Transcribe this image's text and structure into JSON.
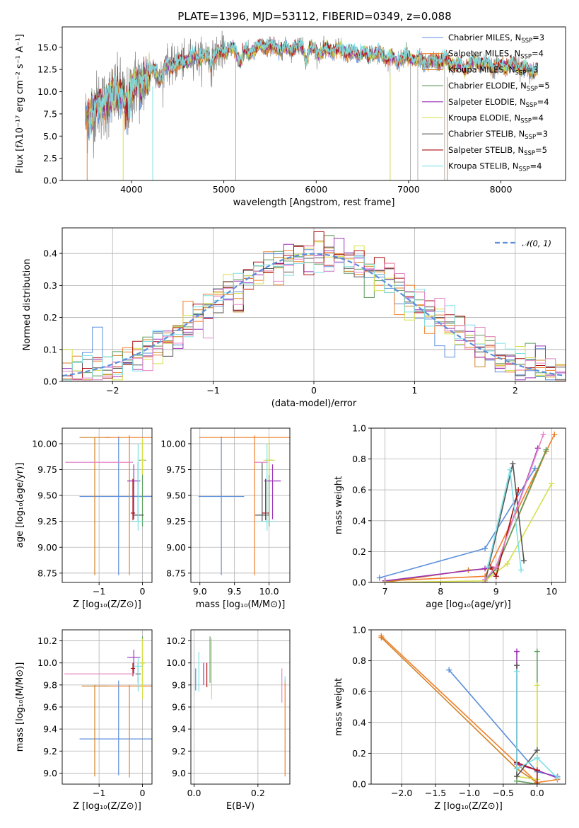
{
  "figure": {
    "title": "PLATE=1396, MJD=53112, FIBERID=0349, z=0.088",
    "colors": {
      "Chabrier MILES": "#5b8fdc",
      "Salpeter MILES": "#f07f2a",
      "Kroupa MILES": "#d28226",
      "Chabrier ELODIE": "#5f9e5f",
      "Salpeter ELODIE": "#9c32b8",
      "Kroupa ELODIE": "#d6e04a",
      "Chabrier STELIB": "#555555",
      "Salpeter STELIB": "#aa1010",
      "Kroupa STELIB": "#7ee0e6"
    }
  },
  "chart_data": [
    {
      "id": "spectrum",
      "type": "line",
      "xlabel": "wavelength [Angstrom, rest frame]",
      "ylabel": "Flux [fλ10⁻¹⁷ erg cm⁻² s⁻¹ A⁻¹]",
      "xlim": [
        3250,
        8700
      ],
      "ylim": [
        0,
        17.3
      ],
      "xticks": [
        4000,
        5000,
        6000,
        7000,
        8000
      ],
      "yticks": [
        0.0,
        2.5,
        5.0,
        7.5,
        10.0,
        12.5,
        15.0
      ],
      "grid": false,
      "legend_position": "right",
      "legend": [
        {
          "name": "Chabrier MILES",
          "label": "Chabrier MILES, N",
          "sub": "SSP",
          "tail": "=3"
        },
        {
          "name": "Salpeter MILES",
          "label": "Salpeter MILES, N",
          "sub": "SSP",
          "tail": "=4"
        },
        {
          "name": "Kroupa MILES",
          "label": "Kroupa MILES, N",
          "sub": "SSP",
          "tail": "=3"
        },
        {
          "name": "Chabrier ELODIE",
          "label": "Chabrier ELODIE, N",
          "sub": "SSP",
          "tail": "=5"
        },
        {
          "name": "Salpeter ELODIE",
          "label": "Salpeter ELODIE, N",
          "sub": "SSP",
          "tail": "=4"
        },
        {
          "name": "Kroupa ELODIE",
          "label": "Kroupa ELODIE, N",
          "sub": "SSP",
          "tail": "=4"
        },
        {
          "name": "Chabrier STELIB",
          "label": "Chabrier STELIB, N",
          "sub": "SSP",
          "tail": "=3"
        },
        {
          "name": "Salpeter STELIB",
          "label": "Salpeter STELIB, N",
          "sub": "SSP",
          "tail": "=5"
        },
        {
          "name": "Kroupa STELIB",
          "label": "Kroupa STELIB, N",
          "sub": "SSP",
          "tail": "=4"
        }
      ],
      "continuum": [
        [
          3500,
          6.5
        ],
        [
          3600,
          8.0
        ],
        [
          3700,
          8.8
        ],
        [
          3800,
          9.5
        ],
        [
          3900,
          9.8
        ],
        [
          4000,
          10.5
        ],
        [
          4100,
          11.3
        ],
        [
          4200,
          12.2
        ],
        [
          4300,
          12.6
        ],
        [
          4400,
          13.0
        ],
        [
          4600,
          13.6
        ],
        [
          4800,
          14.0
        ],
        [
          5000,
          14.5
        ],
        [
          5200,
          14.8
        ],
        [
          5500,
          15.0
        ],
        [
          5800,
          14.9
        ],
        [
          6000,
          14.8
        ],
        [
          6200,
          14.6
        ],
        [
          6500,
          14.4
        ],
        [
          6800,
          14.0
        ],
        [
          7000,
          13.7
        ],
        [
          7200,
          13.5
        ],
        [
          7500,
          13.2
        ],
        [
          7800,
          13.1
        ],
        [
          8000,
          13.0
        ],
        [
          8300,
          12.6
        ],
        [
          8400,
          12.6
        ]
      ]
    },
    {
      "id": "residuals",
      "type": "histogram",
      "xlabel": "(data-model)/error",
      "ylabel": "Normed distribution",
      "xlim": [
        -2.5,
        2.5
      ],
      "ylim": [
        0,
        0.48
      ],
      "xticks": [
        -2,
        -1,
        0,
        1,
        2
      ],
      "yticks": [
        0.0,
        0.1,
        0.2,
        0.3,
        0.4
      ],
      "grid": true,
      "legend_position": "top-right",
      "reference_label": "𝒩(0, 1)",
      "bin_width": 0.1
    },
    {
      "id": "age_vs_Z",
      "type": "scatter",
      "xlabel": "Z [log₁₀(Z/Z⊙)]",
      "ylabel": "age  [log₁₀(age/yr)]",
      "xlim": [
        -1.85,
        0.22
      ],
      "ylim": [
        8.66,
        10.15
      ],
      "xticks": [
        -1,
        0
      ],
      "yticks": [
        8.75,
        9.0,
        9.25,
        9.5,
        9.75,
        10.0
      ],
      "grid": true,
      "points": [
        {
          "model": "Chabrier MILES",
          "x": -0.55,
          "y": 9.49,
          "xerr": 0.9,
          "ylo": 8.73,
          "yhi": 10.07
        },
        {
          "model": "Salpeter MILES",
          "x": -0.3,
          "y": 10.06,
          "xerr": 0.55,
          "ylo": 8.73,
          "yhi": 10.08
        },
        {
          "model": "Kroupa MILES",
          "x": -1.1,
          "y": 10.06,
          "xerr": 0.35,
          "ylo": 8.73,
          "yhi": 10.06
        },
        {
          "model": "Chabrier ELODIE",
          "x": 0.0,
          "y": 9.84,
          "xerr": 0.08,
          "ylo": 9.2,
          "yhi": 10.02
        },
        {
          "model": "Salpeter ELODIE",
          "x": -0.2,
          "y": 9.64,
          "xerr": 0.15,
          "ylo": 9.27,
          "yhi": 9.8
        },
        {
          "model": "Kroupa ELODIE",
          "x": 0.0,
          "y": 9.84,
          "xerr": 0.05,
          "ylo": 9.7,
          "yhi": 10.05
        },
        {
          "model": "Chabrier STELIB",
          "x": -0.1,
          "y": 9.31,
          "xerr": 0.13,
          "ylo": 9.25,
          "yhi": 9.82
        },
        {
          "model": "Salpeter STELIB",
          "x": -0.22,
          "y": 9.33,
          "xerr": 0.05,
          "ylo": 9.26,
          "yhi": 9.66
        },
        {
          "model": "Kroupa STELIB",
          "x": -0.1,
          "y": 9.25,
          "xerr": 0.15,
          "ylo": 9.16,
          "yhi": 10.0
        },
        {
          "model": "Pink",
          "x": -1.0,
          "y": 9.82,
          "xerr": 0.78,
          "ylo": 9.82,
          "yhi": 9.82
        }
      ]
    },
    {
      "id": "age_vs_mass",
      "type": "scatter",
      "xlabel": "mass [log₁₀(M/M⊙)]",
      "ylabel": "",
      "xlim": [
        8.87,
        10.3
      ],
      "ylim": [
        8.66,
        10.15
      ],
      "xticks": [
        9.0,
        9.5,
        10.0
      ],
      "yticks": [
        8.75,
        9.0,
        9.25,
        9.5,
        9.75,
        10.0
      ],
      "grid": true,
      "points": [
        {
          "model": "Chabrier MILES",
          "x": 9.31,
          "y": 9.49,
          "xerr": 0.33,
          "ylo": 8.73,
          "yhi": 10.07
        },
        {
          "model": "Salpeter MILES",
          "x": 9.79,
          "y": 10.06,
          "xerr": 0.8,
          "ylo": 8.73,
          "yhi": 10.08
        },
        {
          "model": "Chabrier ELODIE",
          "x": 10.0,
          "y": 9.84,
          "xerr": 0.05,
          "ylo": 9.2,
          "yhi": 10.02
        },
        {
          "model": "Salpeter ELODIE",
          "x": 10.05,
          "y": 9.64,
          "xerr": 0.12,
          "ylo": 9.27,
          "yhi": 9.8
        },
        {
          "model": "Kroupa ELODIE",
          "x": 10.0,
          "y": 9.84,
          "xerr": 0.08,
          "ylo": 9.7,
          "yhi": 10.05
        },
        {
          "model": "Chabrier STELIB",
          "x": 9.9,
          "y": 9.31,
          "xerr": 0.1,
          "ylo": 9.25,
          "yhi": 9.82
        },
        {
          "model": "Salpeter STELIB",
          "x": 9.95,
          "y": 9.33,
          "xerr": 0.05,
          "ylo": 9.26,
          "yhi": 9.66
        },
        {
          "model": "Kroupa STELIB",
          "x": 9.97,
          "y": 9.25,
          "xerr": 0.12,
          "ylo": 9.16,
          "yhi": 10.0
        },
        {
          "model": "Pink",
          "x": 9.88,
          "y": 9.82,
          "xerr": 0.1,
          "ylo": 9.82,
          "yhi": 9.82
        }
      ]
    },
    {
      "id": "massweight_vs_age",
      "type": "line",
      "xlabel": "age  [log₁₀(age/yr)]",
      "ylabel": "mass weight",
      "xlim": [
        6.75,
        10.25
      ],
      "ylim": [
        0,
        1.0
      ],
      "xticks": [
        7,
        8,
        9,
        10
      ],
      "yticks": [
        0.0,
        0.2,
        0.4,
        0.6,
        0.8,
        1.0
      ],
      "grid": true,
      "series": [
        {
          "model": "Chabrier MILES",
          "x": [
            6.9,
            8.8,
            9.7
          ],
          "y": [
            0.03,
            0.22,
            0.74
          ]
        },
        {
          "model": "Salpeter MILES",
          "x": [
            7.0,
            8.8,
            10.05
          ],
          "y": [
            0.01,
            0.04,
            0.96
          ]
        },
        {
          "model": "Kroupa MILES",
          "x": [
            7.0,
            8.5,
            9.0,
            9.9
          ],
          "y": [
            0.0,
            0.08,
            0.09,
            0.85
          ]
        },
        {
          "model": "Chabrier ELODIE",
          "x": [
            8.8,
            9.0,
            9.9
          ],
          "y": [
            0.01,
            0.09,
            0.86
          ]
        },
        {
          "model": "Salpeter ELODIE",
          "x": [
            7.0,
            8.8,
            9.0,
            9.75
          ],
          "y": [
            0.01,
            0.09,
            0.1,
            0.87
          ]
        },
        {
          "model": "Kroupa ELODIE",
          "x": [
            7.0,
            8.8,
            9.2,
            10.0
          ],
          "y": [
            0.0,
            0.01,
            0.12,
            0.64
          ]
        },
        {
          "model": "Chabrier STELIB",
          "x": [
            8.8,
            9.3,
            9.5
          ],
          "y": [
            0.0,
            0.77,
            0.14
          ]
        },
        {
          "model": "Salpeter STELIB",
          "x": [
            8.9,
            9.0,
            9.4
          ],
          "y": [
            0.1,
            0.04,
            0.6
          ]
        },
        {
          "model": "Kroupa STELIB",
          "x": [
            8.85,
            9.25,
            9.45
          ],
          "y": [
            0.1,
            0.73,
            0.08
          ]
        },
        {
          "model": "Pink",
          "x": [
            8.8,
            9.0,
            9.85
          ],
          "y": [
            0.02,
            0.1,
            0.96
          ]
        }
      ]
    },
    {
      "id": "mass_vs_Z",
      "type": "scatter",
      "xlabel": "Z [log₁₀(Z/Z⊙)]",
      "ylabel": "mass [log₁₀(M/M⊙)]",
      "xlim": [
        -1.85,
        0.22
      ],
      "ylim": [
        8.9,
        10.3
      ],
      "xticks": [
        -1,
        0
      ],
      "yticks": [
        9.0,
        9.2,
        9.4,
        9.6,
        9.8,
        10.0,
        10.2
      ],
      "grid": true,
      "points": [
        {
          "model": "Chabrier MILES",
          "x": -0.55,
          "y": 9.31,
          "xerr": 0.9,
          "ylo": 8.98,
          "yhi": 9.84
        },
        {
          "model": "Salpeter MILES",
          "x": -0.3,
          "y": 9.79,
          "xerr": 0.8,
          "ylo": 8.96,
          "yhi": 9.8
        },
        {
          "model": "Kroupa MILES",
          "x": -1.1,
          "y": 9.79,
          "xerr": 0.3,
          "ylo": 8.97,
          "yhi": 9.8
        },
        {
          "model": "Chabrier ELODIE",
          "x": 0.0,
          "y": 10.0,
          "xerr": 0.06,
          "ylo": 9.78,
          "yhi": 10.24
        },
        {
          "model": "Salpeter ELODIE",
          "x": -0.2,
          "y": 10.05,
          "xerr": 0.15,
          "ylo": 9.9,
          "yhi": 10.12
        },
        {
          "model": "Kroupa ELODIE",
          "x": 0.0,
          "y": 10.0,
          "xerr": 0.06,
          "ylo": 9.67,
          "yhi": 10.22
        },
        {
          "model": "Chabrier STELIB",
          "x": -0.1,
          "y": 9.9,
          "xerr": 0.06,
          "ylo": 9.82,
          "yhi": 10.0
        },
        {
          "model": "Salpeter STELIB",
          "x": -0.22,
          "y": 9.95,
          "xerr": 0.05,
          "ylo": 9.88,
          "yhi": 10.0
        },
        {
          "model": "Kroupa STELIB",
          "x": -0.1,
          "y": 9.97,
          "xerr": 0.1,
          "ylo": 9.74,
          "yhi": 10.05
        },
        {
          "model": "Pink",
          "x": -1.0,
          "y": 9.9,
          "xerr": 0.8,
          "ylo": 9.9,
          "yhi": 9.9
        }
      ]
    },
    {
      "id": "mass_vs_ebv",
      "type": "scatter",
      "xlabel": "E(B-V)",
      "ylabel": "",
      "xlim": [
        -0.01,
        0.3
      ],
      "ylim": [
        8.9,
        10.3
      ],
      "xticks": [
        0.0,
        0.2
      ],
      "yticks": [
        9.0,
        9.2,
        9.4,
        9.6,
        9.8,
        10.0,
        10.2
      ],
      "grid": true,
      "points": [
        {
          "model": "Chabrier MILES",
          "x": 0.005,
          "y": 9.31,
          "ylo": 9.75,
          "yhi": 9.95
        },
        {
          "model": "Kroupa STELIB",
          "x": 0.015,
          "y": 9.97,
          "ylo": 9.74,
          "yhi": 10.1
        },
        {
          "model": "Salpeter ELODIE",
          "x": 0.03,
          "y": 10.05,
          "ylo": 9.8,
          "yhi": 10.0
        },
        {
          "model": "Salpeter STELIB",
          "x": 0.04,
          "y": 9.95,
          "ylo": 9.78,
          "yhi": 10.0
        },
        {
          "model": "Chabrier ELODIE",
          "x": 0.05,
          "y": 10.0,
          "ylo": 9.82,
          "yhi": 10.24
        },
        {
          "model": "Kroupa ELODIE",
          "x": 0.055,
          "y": 10.0,
          "ylo": 9.67,
          "yhi": 10.22
        },
        {
          "model": "Pink",
          "x": 0.275,
          "y": 9.9,
          "ylo": 9.64,
          "yhi": 9.95
        },
        {
          "model": "Salpeter MILES",
          "x": 0.285,
          "y": 9.79,
          "ylo": 8.97,
          "yhi": 9.85
        },
        {
          "model": "Kroupa STELIB",
          "x": 0.285,
          "y": 9.97,
          "ylo": 9.82,
          "yhi": 9.88
        }
      ]
    },
    {
      "id": "massweight_vs_Z",
      "type": "line",
      "xlabel": "Z [log₁₀(Z/Z⊙)]",
      "ylabel": "mass weight",
      "xlim": [
        -2.45,
        0.42
      ],
      "ylim": [
        0,
        1.0
      ],
      "xticks": [
        -2.0,
        -1.5,
        -1.0,
        -0.5,
        0.0
      ],
      "yticks": [
        0.0,
        0.2,
        0.4,
        0.6,
        0.8,
        1.0
      ],
      "grid": true,
      "series": [
        {
          "model": "Chabrier MILES",
          "x": [
            -1.3,
            0.0,
            0.3
          ],
          "y": [
            0.74,
            0.08,
            0.05
          ]
        },
        {
          "model": "Salpeter MILES",
          "x": [
            -2.3,
            0.0,
            0.3
          ],
          "y": [
            0.96,
            0.01,
            0.03
          ]
        },
        {
          "model": "Kroupa MILES",
          "x": [
            -2.3,
            -0.3,
            0.0
          ],
          "y": [
            0.95,
            0.1,
            0.01
          ]
        },
        {
          "model": "Chabrier ELODIE",
          "x": [
            0.0,
            0.0,
            -0.3
          ],
          "y": [
            0.86,
            0.0,
            0.02
          ]
        },
        {
          "model": "Salpeter ELODIE",
          "x": [
            -0.3,
            -0.3,
            0.0,
            0.3
          ],
          "y": [
            0.86,
            0.13,
            0.09,
            0.04
          ]
        },
        {
          "model": "Kroupa ELODIE",
          "x": [
            0.0,
            0.0,
            -0.3
          ],
          "y": [
            0.64,
            0.03,
            0.05
          ]
        },
        {
          "model": "Chabrier STELIB",
          "x": [
            -0.3,
            -0.3,
            0.0
          ],
          "y": [
            0.77,
            0.05,
            0.22
          ]
        },
        {
          "model": "Salpeter STELIB",
          "x": [
            -0.3,
            0.0,
            0.0
          ],
          "y": [
            0.14,
            0.09,
            0.0
          ]
        },
        {
          "model": "Kroupa STELIB",
          "x": [
            -0.3,
            -0.3,
            0.0,
            0.3
          ],
          "y": [
            0.73,
            0.1,
            0.17,
            0.04
          ]
        }
      ]
    }
  ]
}
